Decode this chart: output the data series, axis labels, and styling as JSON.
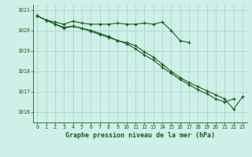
{
  "x": [
    0,
    1,
    2,
    3,
    4,
    5,
    6,
    7,
    8,
    9,
    10,
    11,
    12,
    13,
    14,
    15,
    16,
    17,
    18,
    19,
    20,
    21,
    22,
    23
  ],
  "line1": [
    1020.7,
    1020.5,
    1020.4,
    1020.3,
    1020.45,
    1020.35,
    1020.3,
    1020.3,
    1020.3,
    1020.35,
    1020.3,
    1020.3,
    1020.35,
    1020.3,
    1020.4,
    1020.0,
    1019.5,
    1019.4,
    null,
    null,
    null,
    null,
    null,
    null
  ],
  "line2": [
    1020.7,
    1020.5,
    1020.3,
    1020.15,
    1020.2,
    1020.1,
    1020.0,
    1019.85,
    1019.7,
    1019.5,
    1019.4,
    1019.25,
    1018.95,
    1018.7,
    1018.35,
    1018.0,
    1017.7,
    1017.45,
    1017.25,
    1017.05,
    1016.85,
    1016.65,
    1016.15,
    1016.75
  ],
  "line3": [
    1020.7,
    1020.5,
    1020.3,
    1020.1,
    1020.2,
    1020.1,
    1019.95,
    1019.8,
    1019.65,
    1019.5,
    1019.35,
    1019.1,
    1018.8,
    1018.55,
    1018.2,
    1017.9,
    1017.6,
    1017.35,
    1017.1,
    1016.9,
    1016.65,
    1016.5,
    1016.65,
    null
  ],
  "ylim": [
    1015.5,
    1021.25
  ],
  "yticks": [
    1016,
    1017,
    1018,
    1019,
    1020,
    1021
  ],
  "xlabel": "Graphe pression niveau de la mer (hPa)",
  "xticks": [
    0,
    1,
    2,
    3,
    4,
    5,
    6,
    7,
    8,
    9,
    10,
    11,
    12,
    13,
    14,
    15,
    16,
    17,
    18,
    19,
    20,
    21,
    22,
    23
  ],
  "bg_color": "#cef0e8",
  "line_color": "#1a5e20",
  "grid_color": "#aacec8",
  "marker": "+",
  "markersize": 3,
  "linewidth": 0.8
}
